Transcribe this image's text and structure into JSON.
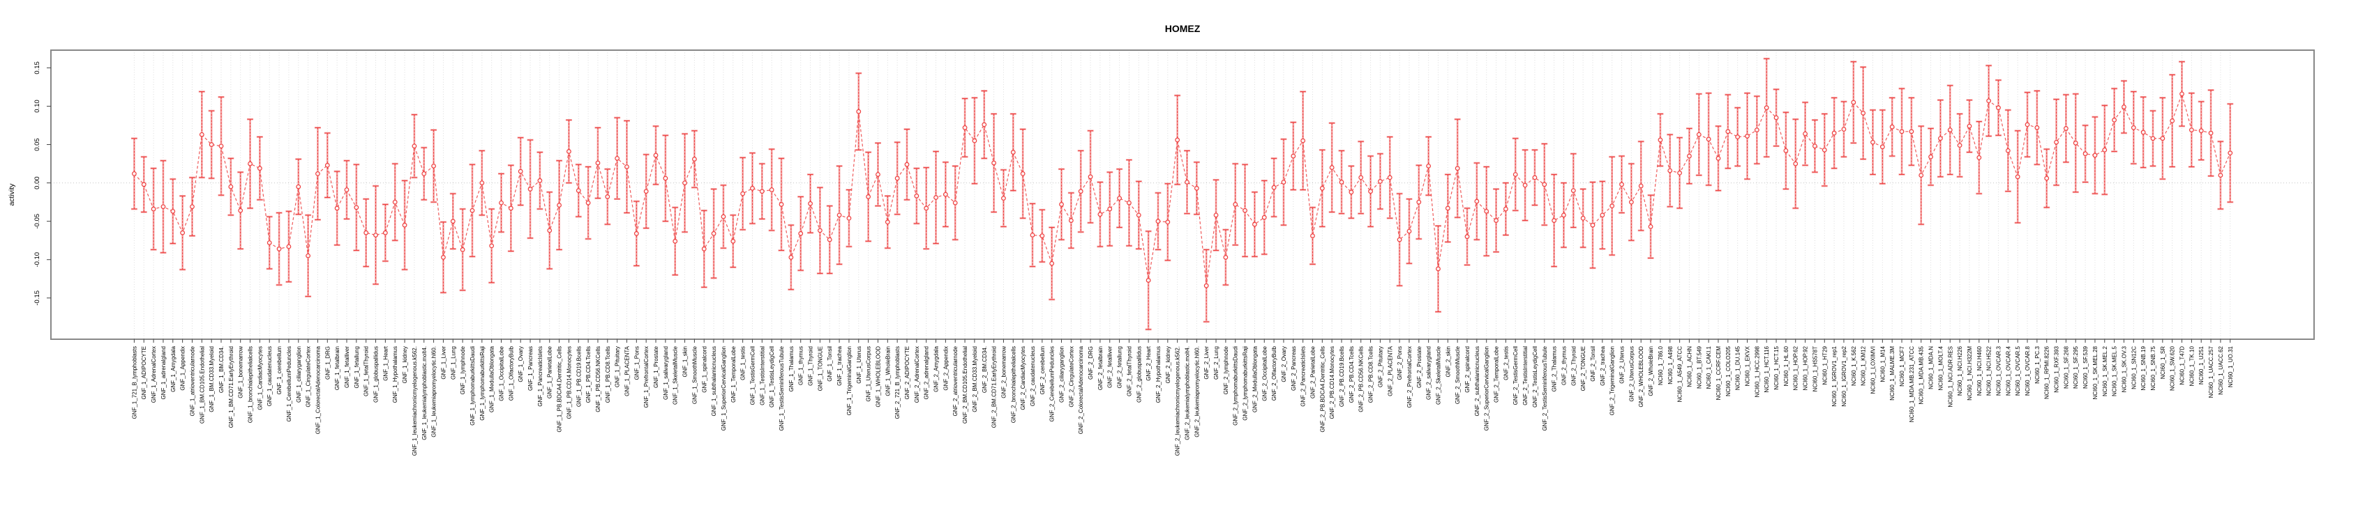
{
  "title": "HOMEZ",
  "chart_data": {
    "type": "scatter",
    "subtype": "points-with-error-bars",
    "title": "HOMEZ",
    "xlabel": "",
    "ylabel": "activity",
    "yticks": [
      -0.15,
      -0.1,
      -0.05,
      0.0,
      0.05,
      0.1,
      0.15
    ],
    "ytick_labels": [
      "-0.15",
      "-0.10",
      "-0.05",
      "0.00",
      "0.05",
      "0.10",
      "0.15"
    ],
    "ylim": [
      -0.205,
      0.173
    ],
    "grid": "vertical dotted gridline per category, dotted horizontal line at 0",
    "legend": "none",
    "point_color": "#ee3c3c",
    "errorbar_color": "#f4a4a4",
    "frame_color": "#888888",
    "categories": [
      "GNF_1_721_B_lymphoblasts",
      "GNF_1_ADIPOCYTE",
      "GNF_1_AdrenalCortex",
      "GNF_1_adrenalgland",
      "GNF_1_Amygdala",
      "GNF_1_Appendix",
      "GNF_1_atrioventricularnode",
      "GNF_1_BM.CD105.Endothelial",
      "GNF_1_BM.CD33.Myeloid",
      "GNF_1_BM.CD34.",
      "GNF_1_BM.CD71.EarlyErythroid",
      "GNF_1_bonemarrow",
      "GNF_1_bronchialepithelialcells",
      "GNF_1_CardiacMyocytes",
      "GNF_1_caudatenucleus",
      "GNF_1_cerebellum",
      "GNF_1_CerebellumPeduncles",
      "GNF_1_ciliaryganglion",
      "GNF_1_CingulateCortex",
      "GNF_1_ColorectalAdenocarcinoma",
      "GNF_1_DRG",
      "GNF_1_fetalbrain",
      "GNF_1_fetalliver",
      "GNF_1_fetallung",
      "GNF_1_fetalThyroid",
      "GNF_1_globuspallidus",
      "GNF_1_Heart",
      "GNF_1_Hypothalamus",
      "GNF_1_kidney",
      "GNF_1_leukemiachronicmyelogenous.k562.",
      "GNF_1_leukemialymphoblastic.molt4.",
      "GNF_1_leukemiapromyelocytic.hl60.",
      "GNF_1_Liver",
      "GNF_1_Lung",
      "GNF_1_lymphnode",
      "GNF_1_lymphomaburkittsDaudi",
      "GNF_1_lymphomaburkittsRaji",
      "GNF_1_MedullaOblongata",
      "GNF_1_OccipitalLobe",
      "GNF_1_OlfactoryBulb",
      "GNF_1_Ovary",
      "GNF_1_Pancreas",
      "GNF_1_PancreaticIslets",
      "GNF_1_ParietalLobe",
      "GNF_1_PB.BDCA4.Dentritic_Cells",
      "GNF_1_PB.CD14.Monocytes",
      "GNF_1_PB.CD19.Bcells",
      "GNF_1_PB.CD4.Tcells",
      "GNF_1_PB.CD56.NKCells",
      "GNF_1_PB.CD8.Tcells",
      "GNF_1_Pituitary",
      "GNF_1_PLACENTA",
      "GNF_1_Pons",
      "GNF_1_PrefrontalCortex",
      "GNF_1_Prostate",
      "GNF_1_salivarygland",
      "GNF_1_SkeletalMuscle",
      "GNF_1_skin",
      "GNF_1_SmoothMuscle",
      "GNF_1_spinalcord",
      "GNF_1_subthalamicnucleus",
      "GNF_1_SuperiorCervicalGanglion",
      "GNF_1_TemporalLobe",
      "GNF_1_testis",
      "GNF_1_TestisGermCell",
      "GNF_1_TestisInterstitial",
      "GNF_1_TestisLeydigCell",
      "GNF_1_TestisSeminiferousTubule",
      "GNF_1_Thalamus",
      "GNF_1_thymus",
      "GNF_1_Thyroid",
      "GNF_1_TONGUE",
      "GNF_1_Tonsil",
      "GNF_1_trachea",
      "GNF_1_TrigeminalGanglion",
      "GNF_1_Uterus",
      "GNF_1_UterusCorpus",
      "GNF_1_WHOLEBLOOD",
      "GNF_1_WholeBrain",
      "GNF_2_721_B_lymphoblasts",
      "GNF_2_ADIPOCYTE",
      "GNF_2_AdrenalCortex",
      "GNF_2_adrenalgland",
      "GNF_2_Amygdala",
      "GNF_2_Appendix",
      "GNF_2_atrioventricularnode",
      "GNF_2_BM.CD105.Endothelial",
      "GNF_2_BM.CD33.Myeloid",
      "GNF_2_BM.CD34.",
      "GNF_2_BM.CD71.EarlyErythroid",
      "GNF_2_bonemarrow",
      "GNF_2_bronchialepithelialcells",
      "GNF_2_CardiacMyocytes",
      "GNF_2_caudatenucleus",
      "GNF_2_cerebellum",
      "GNF_2_CerebellumPeduncles",
      "GNF_2_ciliaryganglion",
      "GNF_2_CingulateCortex",
      "GNF_2_ColorectalAdenocarcinoma",
      "GNF_2_DRG",
      "GNF_2_fetalbrain",
      "GNF_2_fetalliver",
      "GNF_2_fetallung",
      "GNF_2_fetalThyroid",
      "GNF_2_globuspallidus",
      "GNF_2_Heart",
      "GNF_2_Hypothalamus",
      "GNF_2_kidney",
      "GNF_2_leukemiachronicmyelogenous.k562.",
      "GNF_2_leukemialymphoblastic.molt4.",
      "GNF_2_leukemiapromyelocytic.hl60.",
      "GNF_2_Liver",
      "GNF_2_Lung",
      "GNF_2_lymphnode",
      "GNF_2_lymphomaburkittsDaudi",
      "GNF_2_lymphomaburkittsRaji",
      "GNF_2_MedullaOblongata",
      "GNF_2_OccipitalLobe",
      "GNF_2_OlfactoryBulb",
      "GNF_2_Ovary",
      "GNF_2_Pancreas",
      "GNF_2_PancreaticIslets",
      "GNF_2_ParietalLobe",
      "GNF_2_PB.BDCA4.Dentritic_Cells",
      "GNF_2_PB.CD14.Monocytes",
      "GNF_2_PB.CD19.Bcells",
      "GNF_2_PB.CD4.Tcells",
      "GNF_2_PB.CD56.NKCells",
      "GNF_2_PB.CD8.Tcells",
      "GNF_2_Pituitary",
      "GNF_2_PLACENTA",
      "GNF_2_Pons",
      "GNF_2_PrefrontalCortex",
      "GNF_2_Prostate",
      "GNF_2_salivarygland",
      "GNF_2_SkeletalMuscle",
      "GNF_2_skin",
      "GNF_2_SmoothMuscle",
      "GNF_2_spinalcord",
      "GNF_2_subthalamicnucleus",
      "GNF_2_SuperiorCervicalGanglion",
      "GNF_2_TemporalLobe",
      "GNF_2_testis",
      "GNF_2_TestisGermCell",
      "GNF_2_TestisInterstitial",
      "GNF_2_TestisLeydigCell",
      "GNF_2_TestisSeminiferousTubule",
      "GNF_2_Thalamus",
      "GNF_2_thymus",
      "GNF_2_Thyroid",
      "GNF_2_TONGUE",
      "GNF_2_Tonsil",
      "GNF_2_trachea",
      "GNF_2_TrigeminalGanglion",
      "GNF_2_Uterus",
      "GNF_2_UterusCorpus",
      "GNF_2_WHOLEBLOOD",
      "GNF_2_WholeBrain",
      "NCI60_1_786.0",
      "NCI60_1_A498",
      "NCI60_1_A549_ATCC",
      "NCI60_1_ACHN",
      "NCI60_1_BT.549",
      "NCI60_1_CAKI.1",
      "NCI60_1_CCRF.CEM",
      "NCI60_1_COLO205",
      "NCI60_1_DU.145",
      "NCI60_1_EKVX",
      "NCI60_1_HCC.2998",
      "NCI60_1_HCT.116",
      "NCI60_1_HCT.15",
      "NCI60_1_HL.60",
      "NCI60_1_HOP.62",
      "NCI60_1_HOP.92",
      "NCI60_1_HS578T",
      "NCI60_1_HT29",
      "NCI60_1_IGROV1_rep1",
      "NCI60_1_IGROV1_rep2",
      "NCI60_1_K.562",
      "NCI60_1_KM12",
      "NCI60_1_LOXIMVI",
      "NCI60_1_M14",
      "NCI60_1_MALME.3M",
      "NCI60_1_MCF7",
      "NCI60_1_MDA.MB.231_ATCC",
      "NCI60_1_MDA.MB.435",
      "NCI60_1_MDA.N",
      "NCI60_1_MOLT.4",
      "NCI60_1_NCI.ADR.RES",
      "NCI60_1_NCI.H226",
      "NCI60_1_NCI.H322M",
      "NCI60_1_NCI.H460",
      "NCI60_1_NCI.H522",
      "NCI60_1_OVCAR.3",
      "NCI60_1_OVCAR.4",
      "NCI60_1_OVCAR.5",
      "NCI60_1_OVCAR.8",
      "NCI60_1_PC.3",
      "NCI60_1_RPMI.8226",
      "NCI60_1_RXF.393",
      "NCI60_1_SF.268",
      "NCI60_1_SF.295",
      "NCI60_1_SF.539",
      "NCI60_1_SK.MEL.28",
      "NCI60_1_SK.MEL.2",
      "NCI60_1_SK.MEL.5",
      "NCI60_1_SK.OV.3",
      "NCI60_1_SN12C",
      "NCI60_1_SNB.19",
      "NCI60_1_SNB.75",
      "NCI60_1_SR",
      "NCI60_1_SW.620",
      "NCI60_1_T47D",
      "NCI60_1_TK.10",
      "NCI60_1_U251",
      "NCI60_1_UACC.257",
      "NCI60_1_UACC.62",
      "NCI60_1_UO.31"
    ],
    "values": [
      0.012,
      -0.002,
      -0.034,
      -0.031,
      -0.037,
      -0.065,
      -0.031,
      0.063,
      0.05,
      0.048,
      -0.005,
      -0.036,
      0.025,
      0.019,
      -0.078,
      -0.086,
      -0.083,
      -0.005,
      -0.095,
      0.012,
      0.023,
      -0.033,
      -0.009,
      -0.032,
      -0.065,
      -0.068,
      -0.065,
      -0.025,
      -0.055,
      0.048,
      0.012,
      0.022,
      -0.097,
      -0.05,
      -0.087,
      -0.036,
      0.0,
      -0.082,
      -0.026,
      -0.033,
      0.015,
      -0.008,
      0.003,
      -0.062,
      -0.029,
      0.041,
      -0.01,
      -0.026,
      0.026,
      -0.018,
      0.032,
      0.021,
      -0.066,
      -0.011,
      0.036,
      0.006,
      -0.076,
      0.0,
      0.031,
      -0.086,
      -0.066,
      -0.044,
      -0.076,
      -0.014,
      -0.007,
      -0.011,
      -0.009,
      -0.028,
      -0.097,
      -0.066,
      -0.027,
      -0.062,
      -0.074,
      -0.042,
      -0.046,
      0.093,
      -0.018,
      0.011,
      -0.051,
      0.006,
      0.024,
      -0.017,
      -0.033,
      -0.019,
      -0.015,
      -0.026,
      0.072,
      0.055,
      0.076,
      0.026,
      -0.02,
      0.04,
      0.012,
      -0.068,
      -0.069,
      -0.105,
      -0.028,
      -0.049,
      -0.011,
      0.008,
      -0.041,
      -0.034,
      -0.02,
      -0.026,
      -0.042,
      -0.127,
      -0.05,
      -0.051,
      0.056,
      0.001,
      -0.007,
      -0.134,
      -0.042,
      -0.097,
      -0.028,
      -0.036,
      -0.054,
      -0.045,
      -0.006,
      0.001,
      0.035,
      0.055,
      -0.069,
      -0.007,
      0.02,
      0.001,
      -0.012,
      0.007,
      -0.011,
      0.002,
      0.007,
      -0.074,
      -0.063,
      -0.025,
      0.022,
      -0.112,
      -0.033,
      0.019,
      -0.07,
      -0.024,
      -0.037,
      -0.049,
      -0.034,
      0.011,
      -0.003,
      0.007,
      -0.002,
      -0.049,
      -0.042,
      -0.01,
      -0.046,
      -0.055,
      -0.042,
      -0.03,
      -0.002,
      -0.025,
      -0.004,
      -0.057,
      0.056,
      0.016,
      0.013,
      0.035,
      0.063,
      0.057,
      0.032,
      0.067,
      0.06,
      0.061,
      0.069,
      0.098,
      0.085,
      0.042,
      0.025,
      0.064,
      0.048,
      0.043,
      0.065,
      0.07,
      0.105,
      0.091,
      0.053,
      0.047,
      0.073,
      0.067,
      0.067,
      0.01,
      0.034,
      0.058,
      0.069,
      0.049,
      0.074,
      0.033,
      0.107,
      0.098,
      0.042,
      0.008,
      0.076,
      0.072,
      0.006,
      0.053,
      0.071,
      0.052,
      0.038,
      0.036,
      0.043,
      0.082,
      0.099,
      0.072,
      0.066,
      0.058,
      0.058,
      0.081,
      0.116,
      0.069,
      0.068,
      0.065,
      0.01,
      0.039
    ],
    "errors": [
      0.046,
      0.036,
      0.053,
      0.06,
      0.042,
      0.048,
      0.038,
      0.056,
      0.044,
      0.064,
      0.037,
      0.05,
      0.058,
      0.041,
      0.034,
      0.047,
      0.046,
      0.036,
      0.053,
      0.06,
      0.042,
      0.048,
      0.038,
      0.056,
      0.044,
      0.064,
      0.037,
      0.05,
      0.058,
      0.041,
      0.034,
      0.047,
      0.046,
      0.036,
      0.053,
      0.06,
      0.042,
      0.048,
      0.038,
      0.056,
      0.044,
      0.064,
      0.037,
      0.05,
      0.058,
      0.041,
      0.034,
      0.047,
      0.046,
      0.036,
      0.053,
      0.06,
      0.042,
      0.048,
      0.038,
      0.056,
      0.044,
      0.064,
      0.037,
      0.05,
      0.058,
      0.041,
      0.034,
      0.047,
      0.046,
      0.036,
      0.053,
      0.06,
      0.042,
      0.048,
      0.038,
      0.056,
      0.044,
      0.064,
      0.037,
      0.05,
      0.058,
      0.041,
      0.034,
      0.047,
      0.046,
      0.036,
      0.053,
      0.06,
      0.042,
      0.048,
      0.038,
      0.056,
      0.044,
      0.064,
      0.037,
      0.05,
      0.058,
      0.041,
      0.034,
      0.047,
      0.046,
      0.036,
      0.053,
      0.06,
      0.042,
      0.048,
      0.038,
      0.056,
      0.044,
      0.064,
      0.037,
      0.05,
      0.058,
      0.041,
      0.034,
      0.047,
      0.046,
      0.036,
      0.053,
      0.06,
      0.042,
      0.048,
      0.038,
      0.056,
      0.044,
      0.064,
      0.037,
      0.05,
      0.058,
      0.041,
      0.034,
      0.047,
      0.046,
      0.036,
      0.053,
      0.06,
      0.042,
      0.048,
      0.038,
      0.056,
      0.044,
      0.064,
      0.037,
      0.05,
      0.058,
      0.041,
      0.034,
      0.047,
      0.046,
      0.036,
      0.053,
      0.06,
      0.042,
      0.048,
      0.038,
      0.056,
      0.044,
      0.064,
      0.037,
      0.05,
      0.058,
      0.041,
      0.034,
      0.047,
      0.046,
      0.036,
      0.053,
      0.06,
      0.042,
      0.048,
      0.038,
      0.056,
      0.044,
      0.064,
      0.037,
      0.05,
      0.058,
      0.041,
      0.034,
      0.047,
      0.046,
      0.036,
      0.053,
      0.06,
      0.042,
      0.048,
      0.038,
      0.056,
      0.044,
      0.064,
      0.037,
      0.05,
      0.058,
      0.041,
      0.034,
      0.047,
      0.046,
      0.036,
      0.053,
      0.06,
      0.042,
      0.048,
      0.038,
      0.056,
      0.044,
      0.064,
      0.037,
      0.05,
      0.058,
      0.041,
      0.034,
      0.047,
      0.046,
      0.036,
      0.053,
      0.06,
      0.042,
      0.048,
      0.038,
      0.056,
      0.044,
      0.064
    ]
  }
}
